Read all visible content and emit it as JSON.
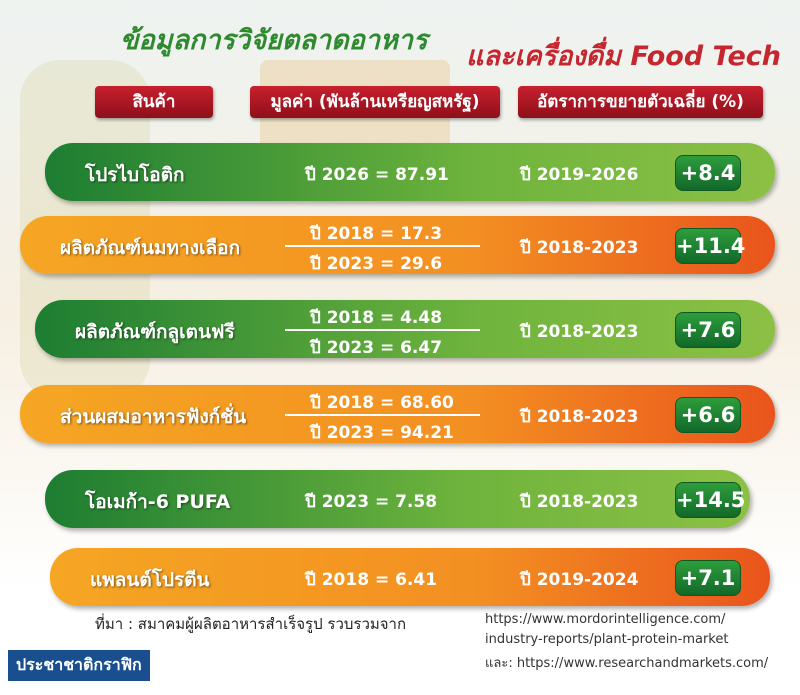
{
  "header": {
    "title_1": "ข้อมูลการวิจัยตลาดอาหาร",
    "title_2": "และเครื่องดื่ม Food Tech"
  },
  "table": {
    "headers": [
      "สินค้า",
      "มูลค่า (พันล้านเหรียญสหรัฐ)",
      "อัตราการขยายตัวเฉลี่ย (%)"
    ],
    "rows": [
      {
        "product": "โปรไบโอติก",
        "values": [
          "ปี 2026 = 87.91"
        ],
        "period": "ปี 2019-2026",
        "rate": "+8.4"
      },
      {
        "product": "ผลิตภัณฑ์นมทางเลือก",
        "values": [
          "ปี 2018 = 17.3",
          "ปี 2023 = 29.6"
        ],
        "period": "ปี 2018-2023",
        "rate": "+11.4"
      },
      {
        "product": "ผลิตภัณฑ์กลูเตนฟรี",
        "values": [
          "ปี 2018 = 4.48",
          "ปี 2023 = 6.47"
        ],
        "period": "ปี 2018-2023",
        "rate": "+7.6"
      },
      {
        "product": "ส่วนผสมอาหารฟังก์ชั่น",
        "values": [
          "ปี 2018 = 68.60",
          "ปี 2023 = 94.21"
        ],
        "period": "ปี 2018-2023",
        "rate": "+6.6"
      },
      {
        "product": "โอเมก้า-6 PUFA",
        "values": [
          "ปี 2023 = 7.58"
        ],
        "period": "ปี 2018-2023",
        "rate": "+14.5"
      },
      {
        "product": "แพลนต์โปรตีน",
        "values": [
          "ปี 2018 = 6.41"
        ],
        "period": "ปี 2019-2024",
        "rate": "+7.1"
      }
    ]
  },
  "source": {
    "label": "ที่มา : สมาคมผู้ผลิตอาหารสำเร็จรูป รวบรวมจาก",
    "links": [
      "https://www.mordorintelligence.com/",
      "industry-reports/plant-protein-market",
      "และ: https://www.researchandmarkets.com/"
    ]
  },
  "credit": "ประชาชาติกราฟิก"
}
